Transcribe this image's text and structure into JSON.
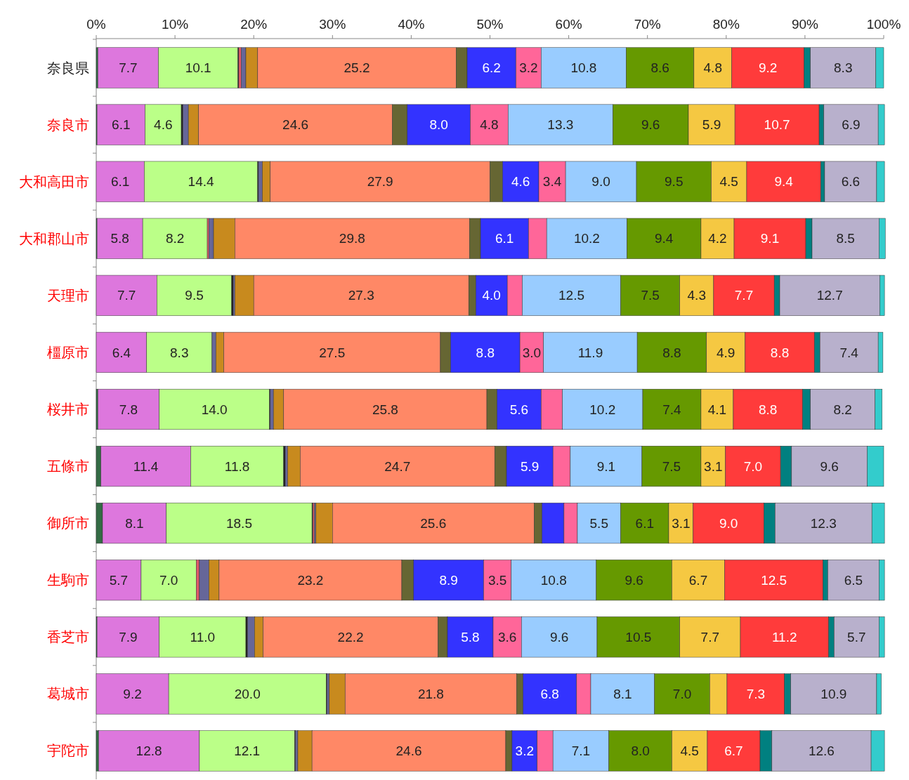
{
  "chart_data": {
    "type": "bar",
    "orientation": "horizontal",
    "stacked": true,
    "categories": [
      "奈良県",
      "奈良市",
      "大和高田市",
      "大和郡山市",
      "天理市",
      "橿原市",
      "桜井市",
      "五條市",
      "御所市",
      "生駒市",
      "香芝市",
      "葛城市",
      "宇陀市"
    ],
    "xlim": [
      0,
      100
    ],
    "xticks": [
      {
        "value": 0,
        "label": "0%"
      },
      {
        "value": 10,
        "label": "10%"
      },
      {
        "value": 20,
        "label": "20%"
      },
      {
        "value": 30,
        "label": "30%"
      },
      {
        "value": 40,
        "label": "40%"
      },
      {
        "value": 50,
        "label": "50%"
      },
      {
        "value": 60,
        "label": "60%"
      },
      {
        "value": 70,
        "label": "70%"
      },
      {
        "value": 80,
        "label": "80%"
      },
      {
        "value": 90,
        "label": "90%"
      },
      {
        "value": 100,
        "label": "100%"
      }
    ],
    "grid": false,
    "series": [
      {
        "color": "#336b44",
        "values": [
          0.2,
          0.1,
          0,
          0.1,
          0,
          0,
          0.2,
          0.6,
          0.8,
          0,
          0.1,
          0,
          0.3
        ]
      },
      {
        "color": "#dd77dd",
        "values": [
          7.7,
          6.1,
          6.1,
          5.8,
          7.7,
          6.4,
          7.8,
          11.4,
          8.1,
          5.7,
          7.9,
          9.2,
          12.8
        ],
        "value_labels": [
          "7.7",
          "6.1",
          "6.1",
          "5.8",
          "7.7",
          "6.4",
          "7.8",
          "11.4",
          "8.1",
          "5.7",
          "7.9",
          "9.2",
          "12.8"
        ]
      },
      {
        "color": "#bbff88",
        "values": [
          10.1,
          4.6,
          14.4,
          8.2,
          9.5,
          8.3,
          14.0,
          11.8,
          18.5,
          7.0,
          11.0,
          20.0,
          12.1
        ],
        "value_labels": [
          "10.1",
          "4.6",
          "14.4",
          "8.2",
          "9.5",
          "8.3",
          "14.0",
          "11.8",
          "18.5",
          "7.0",
          "11.0",
          "20.0",
          "12.1"
        ]
      },
      {
        "color": "#222222",
        "values": [
          0.1,
          0.2,
          0.1,
          0,
          0.2,
          0,
          0.1,
          0.2,
          0.1,
          0,
          0.2,
          0.1,
          0.1
        ]
      },
      {
        "color": "#e05868",
        "values": [
          0.3,
          0,
          0,
          0.2,
          0,
          0,
          0,
          0,
          0.2,
          0.4,
          0,
          0,
          null
        ]
      },
      {
        "color": "#666699",
        "values": [
          0.6,
          0.7,
          0.5,
          0.6,
          0.2,
          0.5,
          0.4,
          0.3,
          0.2,
          1.2,
          0.9,
          0.3,
          0.3
        ]
      },
      {
        "color": "#c88a1e",
        "values": [
          1.5,
          1.3,
          1.0,
          2.7,
          2.4,
          1.0,
          1.3,
          1.6,
          2.1,
          1.3,
          1.1,
          2.0,
          1.8
        ]
      },
      {
        "color": "#ff8866",
        "values": [
          25.2,
          24.6,
          27.9,
          29.8,
          27.3,
          27.5,
          25.8,
          24.7,
          25.6,
          23.2,
          22.2,
          21.8,
          24.6
        ],
        "value_labels": [
          "25.2",
          "24.6",
          "27.9",
          "29.8",
          "27.3",
          "27.5",
          "25.8",
          "24.7",
          "25.6",
          "23.2",
          "22.2",
          "21.8",
          "24.6"
        ]
      },
      {
        "color": "#666633",
        "values": [
          1.4,
          1.9,
          1.6,
          1.4,
          0.9,
          1.3,
          1.3,
          1.5,
          1.0,
          1.5,
          1.2,
          0.8,
          0.8
        ]
      },
      {
        "color": "#3333ff",
        "values": [
          6.2,
          8.0,
          4.6,
          6.1,
          4.0,
          8.8,
          5.6,
          5.9,
          2.8,
          8.9,
          5.8,
          6.8,
          3.2
        ],
        "value_labels": [
          "6.2",
          "8.0",
          "4.6",
          "6.1",
          "4.0",
          "8.8",
          "5.6",
          "5.9",
          null,
          "8.9",
          "5.8",
          "6.8",
          "3.2"
        ]
      },
      {
        "color": "#ff6699",
        "values": [
          3.2,
          4.8,
          3.4,
          2.3,
          1.9,
          3.0,
          2.7,
          2.2,
          1.7,
          3.5,
          3.6,
          1.8,
          2.0
        ],
        "value_labels": [
          "3.2",
          "4.8",
          "3.4",
          null,
          null,
          "3.0",
          null,
          null,
          null,
          "3.5",
          "3.6",
          null,
          null
        ]
      },
      {
        "color": "#99ccff",
        "values": [
          10.8,
          13.3,
          9.0,
          10.2,
          12.5,
          11.9,
          10.2,
          9.1,
          5.5,
          10.8,
          9.6,
          8.1,
          7.1
        ],
        "value_labels": [
          "10.8",
          "13.3",
          "9.0",
          "10.2",
          "12.5",
          "11.9",
          "10.2",
          "9.1",
          "5.5",
          "10.8",
          "9.6",
          "8.1",
          "7.1"
        ]
      },
      {
        "color": "#669900",
        "values": [
          8.6,
          9.6,
          9.5,
          9.4,
          7.5,
          8.8,
          7.4,
          7.5,
          6.1,
          9.6,
          10.5,
          7.0,
          8.0
        ],
        "value_labels": [
          "8.6",
          "9.6",
          "9.5",
          "9.4",
          "7.5",
          "8.8",
          "7.4",
          "7.5",
          "6.1",
          "9.6",
          "10.5",
          "7.0",
          "8.0"
        ]
      },
      {
        "color": "#f5c842",
        "values": [
          4.8,
          5.9,
          4.5,
          4.2,
          4.3,
          4.9,
          4.1,
          3.1,
          3.1,
          6.7,
          7.7,
          2.2,
          4.5
        ],
        "value_labels": [
          "4.8",
          "5.9",
          "4.5",
          "4.2",
          "4.3",
          "4.9",
          "4.1",
          "3.1",
          "3.1",
          "6.7",
          "7.7",
          null,
          "4.5"
        ]
      },
      {
        "color": "#ff3b3b",
        "values": [
          9.2,
          10.7,
          9.4,
          9.1,
          7.7,
          8.8,
          8.8,
          7.0,
          9.0,
          12.5,
          11.2,
          7.3,
          6.7
        ],
        "value_labels": [
          "9.2",
          "10.7",
          "9.4",
          "9.1",
          "7.7",
          "8.8",
          "8.8",
          "7.0",
          "9.0",
          "12.5",
          "11.2",
          "7.3",
          "6.7"
        ]
      },
      {
        "color": "#008080",
        "values": [
          0.8,
          0.6,
          0.5,
          0.8,
          0.7,
          0.7,
          1.0,
          1.4,
          1.4,
          0.6,
          0.7,
          0.8,
          1.5
        ]
      },
      {
        "color": "#b8b0cc",
        "values": [
          8.3,
          6.9,
          6.6,
          8.5,
          12.7,
          7.4,
          8.2,
          9.6,
          12.3,
          6.5,
          5.7,
          10.9,
          12.6
        ],
        "value_labels": [
          "8.3",
          "6.9",
          "6.6",
          "8.5",
          "12.7",
          "7.4",
          "8.2",
          "9.6",
          "12.3",
          "6.5",
          "5.7",
          "10.9",
          "12.6"
        ]
      },
      {
        "color": "#33cccc",
        "values": [
          1.0,
          0.8,
          1.0,
          0.8,
          0.6,
          0.6,
          0.9,
          2.1,
          1.6,
          0.7,
          0.7,
          0.6,
          1.7
        ]
      }
    ]
  }
}
